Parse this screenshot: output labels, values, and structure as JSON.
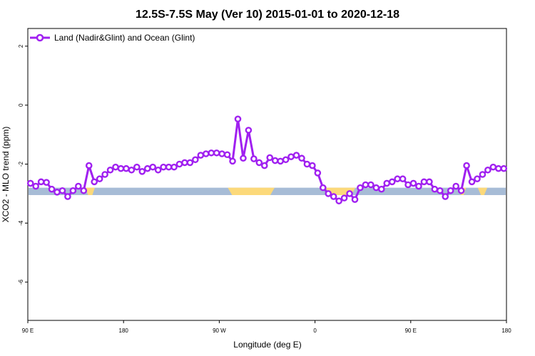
{
  "chart_data": {
    "type": "line",
    "title": "12.5S-7.5S May (Ver 10)   2015-01-01 to 2020-12-18",
    "xlabel": "Longitude (deg E)",
    "ylabel": "XCO2 - MLO trend (ppm)",
    "x_ticks": [
      {
        "value": 90,
        "label": "90 E"
      },
      {
        "value": 180,
        "label": "180"
      },
      {
        "value": 270,
        "label": "90 W"
      },
      {
        "value": 360,
        "label": "0"
      },
      {
        "value": 450,
        "label": "90 E"
      },
      {
        "value": 540,
        "label": "180"
      }
    ],
    "y_ticks": [
      {
        "value": 2,
        "label": "2"
      },
      {
        "value": 0,
        "label": "0"
      },
      {
        "value": -2,
        "label": "-2"
      },
      {
        "value": -4,
        "label": "-4"
      },
      {
        "value": -6,
        "label": "-6"
      }
    ],
    "xlim": [
      90,
      540
    ],
    "ylim": [
      -7.3,
      2.6
    ],
    "grid": false,
    "legend_position": "top-left",
    "series_color": "#a020f0",
    "series": [
      {
        "name": "Land (Nadir&Glint) and Ocean (Glint)",
        "x": [
          92.5,
          97.5,
          102.5,
          107.5,
          112.5,
          117.5,
          122.5,
          127.5,
          132.5,
          137.5,
          142.5,
          147.5,
          152.5,
          157.5,
          162.5,
          167.5,
          172.5,
          177.5,
          182.5,
          187.5,
          192.5,
          197.5,
          202.5,
          207.5,
          212.5,
          217.5,
          222.5,
          227.5,
          232.5,
          237.5,
          242.5,
          247.5,
          252.5,
          257.5,
          262.5,
          267.5,
          272.5,
          277.5,
          282.5,
          287.5,
          292.5,
          297.5,
          302.5,
          307.5,
          312.5,
          317.5,
          322.5,
          327.5,
          332.5,
          337.5,
          342.5,
          347.5,
          352.5,
          357.5,
          362.5,
          367.5,
          372.5,
          377.5,
          382.5,
          387.5,
          392.5,
          397.5,
          402.5,
          407.5,
          412.5,
          417.5,
          422.5,
          427.5,
          432.5,
          437.5,
          442.5,
          447.5,
          452.5,
          457.5,
          462.5,
          467.5,
          472.5,
          477.5,
          482.5,
          487.5,
          492.5,
          497.5,
          502.5,
          507.5,
          512.5,
          517.5,
          522.5,
          527.5,
          532.5,
          537.5
        ],
        "y": [
          -2.65,
          -2.75,
          -2.6,
          -2.62,
          -2.85,
          -2.95,
          -2.9,
          -3.1,
          -2.9,
          -2.75,
          -2.9,
          -2.05,
          -2.6,
          -2.5,
          -2.35,
          -2.2,
          -2.1,
          -2.15,
          -2.15,
          -2.2,
          -2.1,
          -2.25,
          -2.15,
          -2.1,
          -2.2,
          -2.1,
          -2.1,
          -2.1,
          -2.0,
          -1.95,
          -1.95,
          -1.85,
          -1.7,
          -1.65,
          -1.62,
          -1.62,
          -1.65,
          -1.68,
          -1.9,
          -0.47,
          -1.8,
          -0.85,
          -1.82,
          -1.95,
          -2.05,
          -1.78,
          -1.88,
          -1.9,
          -1.85,
          -1.75,
          -1.7,
          -1.8,
          -2.0,
          -2.05,
          -2.3,
          -2.8,
          -3.0,
          -3.1,
          -3.25,
          -3.15,
          -3.0,
          -3.2,
          -2.8,
          -2.7,
          -2.7,
          -2.8,
          -2.85,
          -2.65,
          -2.6,
          -2.5,
          -2.5,
          -2.7,
          -2.65,
          -2.75,
          -2.6,
          -2.6,
          -2.85,
          -2.9,
          -3.1,
          -2.9,
          -2.75,
          -2.9,
          -2.05,
          -2.6,
          -2.5,
          -2.35,
          -2.2,
          -2.1,
          -2.15,
          -2.15
        ]
      }
    ],
    "surface_band": {
      "y_top": -2.8,
      "y_bottom": -3.05,
      "ocean_color": "#a7bcd6",
      "land_color": "#fcd97a",
      "land_segments": [
        [
          144,
          152
        ],
        [
          146,
          153
        ],
        [
          278,
          322
        ],
        [
          370,
          398
        ],
        [
          495,
          502
        ],
        [
          513,
          522
        ]
      ]
    }
  }
}
